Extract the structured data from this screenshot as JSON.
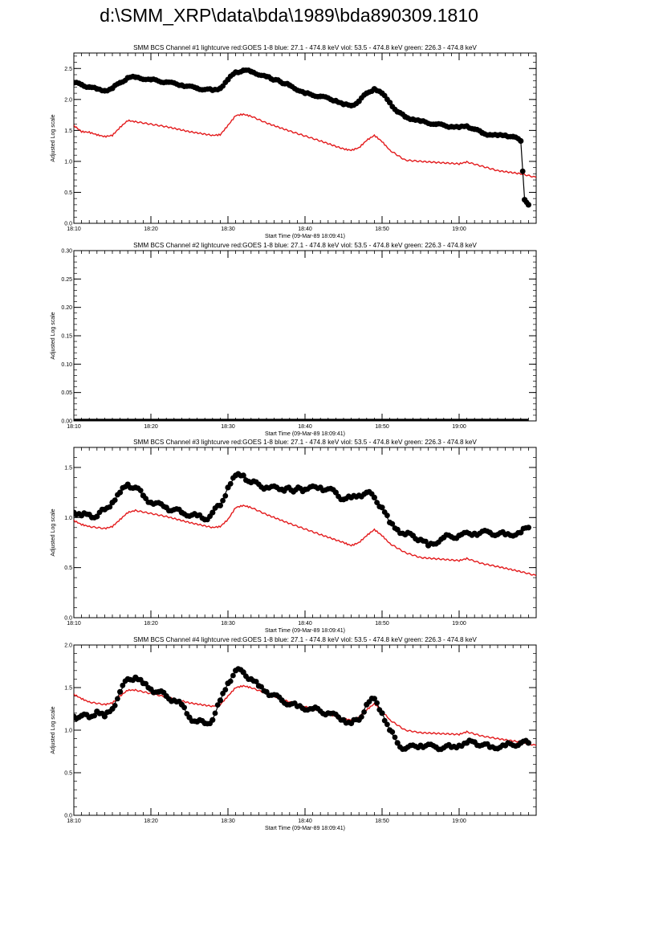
{
  "page": {
    "title": "d:\\SMM_XRP\\data\\bda\\1989\\bda890309.1810"
  },
  "style": {
    "goes_color": "#e31a1c",
    "data_color": "#000000",
    "axis_color": "#000000"
  },
  "chart_data": [
    {
      "type": "scatter",
      "title": "SMM BCS Channel #1 lightcurve  red:GOES 1-8  blue: 27.1 - 474.8 keV  viol: 53.5 - 474.8 keV  green: 226.3 - 474.8 keV",
      "xlabel": "Start Time (09-Mar-89 18:09:41)",
      "ylabel": "Adjusted Log scale",
      "xlim": [
        "18:10",
        "19:10"
      ],
      "ylim": [
        0,
        2.75
      ],
      "x_ticks": [
        "18:10",
        "18:20",
        "18:30",
        "18:40",
        "18:50",
        "19:00"
      ],
      "y_ticks": [
        "0.0",
        "0.5",
        "1.0",
        "1.5",
        "2.0",
        "2.5"
      ],
      "grid": false,
      "series": [
        {
          "name": "GOES 1-8",
          "style": "line",
          "color": "#e31a1c",
          "x": [
            "18:10",
            "18:11",
            "18:12",
            "18:13",
            "18:14",
            "18:15",
            "18:16",
            "18:17",
            "18:18",
            "18:20",
            "18:22",
            "18:25",
            "18:28",
            "18:29",
            "18:30",
            "18:31",
            "18:32",
            "18:33",
            "18:35",
            "18:38",
            "18:42",
            "18:45",
            "18:46",
            "18:47",
            "18:48",
            "18:49",
            "18:50",
            "18:51",
            "18:53",
            "18:55",
            "19:00",
            "19:01",
            "19:03",
            "19:05",
            "19:08",
            "19:10"
          ],
          "values": [
            1.58,
            1.48,
            1.47,
            1.43,
            1.4,
            1.42,
            1.55,
            1.66,
            1.64,
            1.6,
            1.56,
            1.48,
            1.42,
            1.43,
            1.58,
            1.74,
            1.76,
            1.73,
            1.62,
            1.49,
            1.33,
            1.2,
            1.18,
            1.22,
            1.34,
            1.42,
            1.32,
            1.18,
            1.02,
            1.0,
            0.96,
            0.99,
            0.92,
            0.85,
            0.8,
            0.74
          ]
        },
        {
          "name": "BCS Channel #1",
          "style": "points",
          "color": "#000000",
          "x": [
            "18:10",
            "18:11",
            "18:12",
            "18:13",
            "18:14",
            "18:15",
            "18:16",
            "18:17",
            "18:18",
            "18:20",
            "18:22",
            "18:24",
            "18:26",
            "18:28",
            "18:29",
            "18:30",
            "18:31",
            "18:32",
            "18:33",
            "18:35",
            "18:38",
            "18:40",
            "18:42",
            "18:44",
            "18:45",
            "18:46",
            "18:47",
            "18:48",
            "18:49",
            "18:50",
            "18:51",
            "18:52",
            "18:53",
            "18:54",
            "18:55",
            "18:57",
            "18:59",
            "19:00",
            "19:01",
            "19:02",
            "19:03",
            "19:04",
            "19:05",
            "19:06",
            "19:07",
            "19:08",
            "19:08.5",
            "19:09"
          ],
          "values": [
            2.27,
            2.24,
            2.2,
            2.17,
            2.14,
            2.18,
            2.27,
            2.35,
            2.36,
            2.32,
            2.28,
            2.23,
            2.18,
            2.15,
            2.18,
            2.32,
            2.44,
            2.47,
            2.45,
            2.37,
            2.23,
            2.1,
            2.05,
            1.98,
            1.92,
            1.9,
            1.97,
            2.1,
            2.17,
            2.1,
            1.95,
            1.8,
            1.72,
            1.68,
            1.65,
            1.6,
            1.56,
            1.55,
            1.57,
            1.52,
            1.46,
            1.43,
            1.42,
            1.42,
            1.4,
            1.33,
            0.38,
            0.3
          ]
        }
      ]
    },
    {
      "type": "scatter",
      "title": "SMM BCS Channel #2 lightcurve  red:GOES 1-8  blue: 27.1 - 474.8 keV  viol: 53.5 - 474.8 keV  green: 226.3 - 474.8 keV",
      "xlabel": "Start Time (09-Mar-89 18:09:41)",
      "ylabel": "Adjusted Log scale",
      "xlim": [
        "18:10",
        "19:10"
      ],
      "ylim": [
        0,
        0.3
      ],
      "x_ticks": [
        "18:10",
        "18:20",
        "18:30",
        "18:40",
        "18:50",
        "19:00"
      ],
      "y_ticks": [
        "0.00",
        "0.05",
        "0.10",
        "0.15",
        "0.20",
        "0.25",
        "0.30"
      ],
      "grid": false,
      "series": [
        {
          "name": "BCS Channel #2",
          "style": "flatline",
          "color": "#000000",
          "x": [
            "18:10",
            "19:09"
          ],
          "values": [
            0.0,
            0.0
          ]
        }
      ]
    },
    {
      "type": "scatter",
      "title": "SMM BCS Channel #3 lightcurve  red:GOES 1-8  blue: 27.1 - 474.8 keV  viol: 53.5 - 474.8 keV  green: 226.3 - 474.8 keV",
      "xlabel": "Start Time (09-Mar-89 18:09:41)",
      "ylabel": "Adjusted Log scale",
      "xlim": [
        "18:10",
        "19:10"
      ],
      "ylim": [
        0,
        1.7
      ],
      "x_ticks": [
        "18:10",
        "18:20",
        "18:30",
        "18:40",
        "18:50",
        "19:00"
      ],
      "y_ticks": [
        "0.0",
        "0.5",
        "1.0",
        "1.5"
      ],
      "grid": false,
      "series": [
        {
          "name": "GOES 1-8",
          "style": "line",
          "color": "#e31a1c",
          "x": [
            "18:10",
            "18:11",
            "18:12",
            "18:14",
            "18:15",
            "18:16",
            "18:17",
            "18:18",
            "18:20",
            "18:22",
            "18:25",
            "18:28",
            "18:29",
            "18:30",
            "18:31",
            "18:32",
            "18:33",
            "18:35",
            "18:38",
            "18:42",
            "18:45",
            "18:46",
            "18:47",
            "18:48",
            "18:49",
            "18:50",
            "18:51",
            "18:53",
            "18:55",
            "19:00",
            "19:01",
            "19:03",
            "19:05",
            "19:08",
            "19:10"
          ],
          "values": [
            0.97,
            0.93,
            0.91,
            0.89,
            0.91,
            0.98,
            1.05,
            1.07,
            1.04,
            1.01,
            0.95,
            0.9,
            0.91,
            0.98,
            1.1,
            1.12,
            1.1,
            1.03,
            0.94,
            0.83,
            0.75,
            0.72,
            0.75,
            0.82,
            0.88,
            0.82,
            0.74,
            0.65,
            0.6,
            0.57,
            0.59,
            0.54,
            0.51,
            0.46,
            0.42
          ]
        },
        {
          "name": "BCS Channel #3",
          "style": "points",
          "color": "#000000",
          "x": [
            "18:10",
            "18:11",
            "18:12",
            "18:13",
            "18:14",
            "18:15",
            "18:16",
            "18:17",
            "18:18",
            "18:19",
            "18:20",
            "18:22",
            "18:24",
            "18:26",
            "18:27",
            "18:28",
            "18:29",
            "18:30",
            "18:31",
            "18:32",
            "18:33",
            "18:35",
            "18:37",
            "18:40",
            "18:42",
            "18:44",
            "18:45",
            "18:46",
            "18:47",
            "18:48",
            "18:49",
            "18:50",
            "18:51",
            "18:52",
            "18:53",
            "18:54",
            "18:55",
            "18:56",
            "18:58",
            "19:00",
            "19:02",
            "19:04",
            "19:06",
            "19:08",
            "19:09"
          ],
          "values": [
            1.05,
            1.02,
            1.03,
            1.01,
            1.08,
            1.15,
            1.25,
            1.33,
            1.3,
            1.22,
            1.15,
            1.1,
            1.05,
            1.02,
            0.98,
            1.05,
            1.12,
            1.3,
            1.42,
            1.42,
            1.35,
            1.3,
            1.28,
            1.28,
            1.3,
            1.25,
            1.18,
            1.2,
            1.22,
            1.25,
            1.2,
            1.1,
            0.95,
            0.88,
            0.83,
            0.82,
            0.78,
            0.72,
            0.8,
            0.82,
            0.84,
            0.85,
            0.83,
            0.85,
            0.9
          ]
        }
      ]
    },
    {
      "type": "scatter",
      "title": "SMM BCS Channel #4 lightcurve  red:GOES 1-8  blue: 27.1 - 474.8 keV  viol: 53.5 - 474.8 keV  green: 226.3 - 474.8 keV",
      "xlabel": "Start Time (09-Mar-89 18:09:41)",
      "ylabel": "Adjusted Log scale",
      "xlim": [
        "18:10",
        "19:10"
      ],
      "ylim": [
        0,
        2.0
      ],
      "x_ticks": [
        "18:10",
        "18:20",
        "18:30",
        "18:40",
        "18:50",
        "19:00"
      ],
      "y_ticks": [
        "0.0",
        "0.5",
        "1.0",
        "1.5",
        "2.0"
      ],
      "grid": false,
      "series": [
        {
          "name": "GOES 1-8",
          "style": "line",
          "color": "#e31a1c",
          "x": [
            "18:10",
            "18:11",
            "18:12",
            "18:14",
            "18:15",
            "18:16",
            "18:17",
            "18:18",
            "18:20",
            "18:22",
            "18:25",
            "18:28",
            "18:29",
            "18:30",
            "18:31",
            "18:32",
            "18:33",
            "18:35",
            "18:38",
            "18:42",
            "18:45",
            "18:46",
            "18:47",
            "18:48",
            "18:49",
            "18:50",
            "18:51",
            "18:53",
            "18:55",
            "19:00",
            "19:01",
            "19:03",
            "19:05",
            "19:08",
            "19:10"
          ],
          "values": [
            1.42,
            1.37,
            1.33,
            1.3,
            1.32,
            1.4,
            1.47,
            1.47,
            1.43,
            1.39,
            1.32,
            1.28,
            1.3,
            1.4,
            1.5,
            1.52,
            1.5,
            1.43,
            1.33,
            1.22,
            1.13,
            1.12,
            1.15,
            1.24,
            1.31,
            1.23,
            1.12,
            1.0,
            0.97,
            0.95,
            0.98,
            0.93,
            0.9,
            0.86,
            0.82
          ]
        },
        {
          "name": "BCS Channel #4",
          "style": "points",
          "color": "#000000",
          "x": [
            "18:10",
            "18:11",
            "18:12",
            "18:13",
            "18:14",
            "18:15",
            "18:16",
            "18:17",
            "18:18",
            "18:19",
            "18:20",
            "18:21",
            "18:22",
            "18:23",
            "18:24",
            "18:25",
            "18:26",
            "18:27",
            "18:28",
            "18:29",
            "18:30",
            "18:31",
            "18:32",
            "18:33",
            "18:34",
            "18:35",
            "18:37",
            "18:39",
            "18:41",
            "18:43",
            "18:45",
            "18:46",
            "18:47",
            "18:48",
            "18:49",
            "18:50",
            "18:51",
            "18:52",
            "18:53",
            "18:55",
            "18:57",
            "18:59",
            "19:00",
            "19:01",
            "19:02",
            "19:04",
            "19:06",
            "19:08",
            "19:09"
          ],
          "values": [
            1.16,
            1.17,
            1.15,
            1.22,
            1.16,
            1.25,
            1.45,
            1.6,
            1.62,
            1.55,
            1.48,
            1.45,
            1.4,
            1.35,
            1.3,
            1.15,
            1.1,
            1.08,
            1.12,
            1.35,
            1.55,
            1.7,
            1.68,
            1.6,
            1.52,
            1.45,
            1.35,
            1.28,
            1.25,
            1.2,
            1.12,
            1.08,
            1.12,
            1.3,
            1.37,
            1.2,
            1.0,
            0.85,
            0.78,
            0.82,
            0.8,
            0.8,
            0.82,
            0.85,
            0.86,
            0.8,
            0.82,
            0.85,
            0.85
          ]
        }
      ]
    }
  ]
}
